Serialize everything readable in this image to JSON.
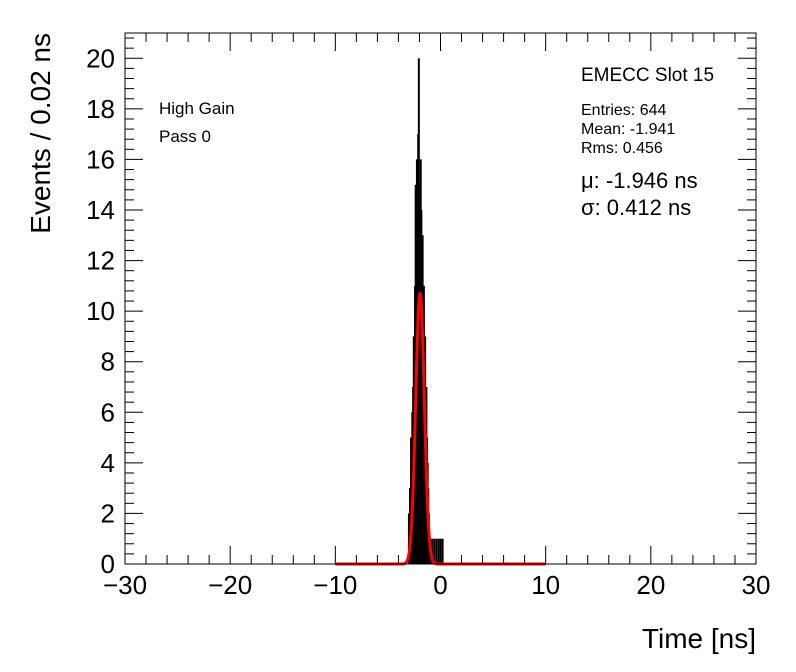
{
  "chart_data": {
    "type": "histogram",
    "xlabel": "Time [ns]",
    "ylabel": "Events / 0.02 ns",
    "xlim": [
      -30,
      30
    ],
    "ylim": [
      0,
      21
    ],
    "x_ticks": [
      -30,
      -20,
      -10,
      0,
      10,
      20,
      30
    ],
    "x_tick_labels": [
      "−30",
      "−20",
      "−10",
      "0",
      "10",
      "20",
      "30"
    ],
    "y_ticks": [
      0,
      2,
      4,
      6,
      8,
      10,
      12,
      14,
      16,
      18,
      20
    ],
    "y_tick_labels": [
      "0",
      "2",
      "4",
      "6",
      "8",
      "10",
      "12",
      "14",
      "16",
      "18",
      "20"
    ],
    "grid": false,
    "bin_width": 0.02,
    "histogram": {
      "color": "#000000",
      "bins": [
        {
          "x": -3.0,
          "y": 2
        },
        {
          "x": -2.9,
          "y": 3
        },
        {
          "x": -2.8,
          "y": 5
        },
        {
          "x": -2.74,
          "y": 3
        },
        {
          "x": -2.68,
          "y": 6
        },
        {
          "x": -2.6,
          "y": 7
        },
        {
          "x": -2.54,
          "y": 9
        },
        {
          "x": -2.48,
          "y": 8
        },
        {
          "x": -2.42,
          "y": 11
        },
        {
          "x": -2.36,
          "y": 15
        },
        {
          "x": -2.3,
          "y": 12
        },
        {
          "x": -2.24,
          "y": 16
        },
        {
          "x": -2.18,
          "y": 14
        },
        {
          "x": -2.12,
          "y": 17
        },
        {
          "x": -2.06,
          "y": 20
        },
        {
          "x": -2.0,
          "y": 15
        },
        {
          "x": -1.94,
          "y": 13
        },
        {
          "x": -1.88,
          "y": 16
        },
        {
          "x": -1.82,
          "y": 14
        },
        {
          "x": -1.76,
          "y": 12
        },
        {
          "x": -1.7,
          "y": 13
        },
        {
          "x": -1.64,
          "y": 10
        },
        {
          "x": -1.58,
          "y": 11
        },
        {
          "x": -1.52,
          "y": 8
        },
        {
          "x": -1.46,
          "y": 9
        },
        {
          "x": -1.4,
          "y": 6
        },
        {
          "x": -1.34,
          "y": 7
        },
        {
          "x": -1.28,
          "y": 5
        },
        {
          "x": -1.22,
          "y": 4
        },
        {
          "x": -1.16,
          "y": 3
        },
        {
          "x": -1.1,
          "y": 2
        },
        {
          "x": -1.0,
          "y": 1
        },
        {
          "x": -0.8,
          "y": 1
        },
        {
          "x": -0.6,
          "y": 1
        },
        {
          "x": -0.4,
          "y": 1
        },
        {
          "x": -0.2,
          "y": 1
        },
        {
          "x": 0.0,
          "y": 1
        },
        {
          "x": 0.2,
          "y": 1
        }
      ]
    },
    "fit": {
      "color": "#ff0000",
      "function": "gaussian",
      "amplitude": 10.7,
      "mu": -1.946,
      "sigma": 0.412,
      "range": [
        -10,
        10
      ]
    },
    "annotations": {
      "left": [
        "High Gain",
        "Pass 0"
      ],
      "title": "EMECC Slot 15",
      "stats": [
        "Entries: 644",
        "Mean: -1.941",
        "Rms: 0.456"
      ],
      "fit_results": [
        "μ: -1.946 ns",
        "σ: 0.412 ns"
      ]
    }
  }
}
